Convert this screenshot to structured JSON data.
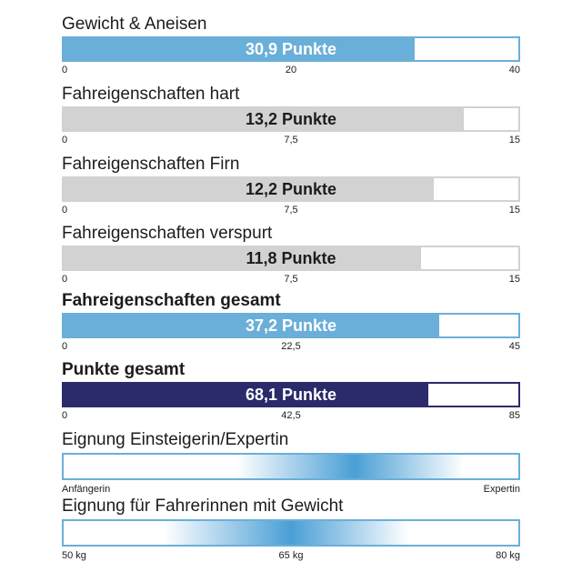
{
  "colors": {
    "blue": "#6aafd9",
    "gray": "#d2d2d2",
    "navy": "#2b2a6b",
    "label_dark": "#1c1c1c",
    "label_light": "#ffffff"
  },
  "chart_data": [
    {
      "type": "bar",
      "title": "Gewicht & Aneisen",
      "value": 30.9,
      "value_label": "30,9 Punkte",
      "ylim": [
        0,
        40
      ],
      "ticks": [
        "0",
        "20",
        "40"
      ],
      "color": "blue"
    },
    {
      "type": "bar",
      "title": "Fahreigenschaften hart",
      "value": 13.2,
      "value_label": "13,2 Punkte",
      "ylim": [
        0,
        15
      ],
      "ticks": [
        "0",
        "7,5",
        "15"
      ],
      "color": "gray"
    },
    {
      "type": "bar",
      "title": "Fahreigenschaften Firn",
      "value": 12.2,
      "value_label": "12,2 Punkte",
      "ylim": [
        0,
        15
      ],
      "ticks": [
        "0",
        "7,5",
        "15"
      ],
      "color": "gray"
    },
    {
      "type": "bar",
      "title": "Fahreigenschaften verspurt",
      "value": 11.8,
      "value_label": "11,8 Punkte",
      "ylim": [
        0,
        15
      ],
      "ticks": [
        "0",
        "7,5",
        "15"
      ],
      "color": "gray"
    },
    {
      "type": "bar",
      "title": "Fahreigenschaften gesamt",
      "value": 37.2,
      "value_label": "37,2 Punkte",
      "ylim": [
        0,
        45
      ],
      "ticks": [
        "0",
        "22,5",
        "45"
      ],
      "color": "blue"
    },
    {
      "type": "bar",
      "title": "Punkte gesamt",
      "value": 68.1,
      "value_label": "68,1 Punkte",
      "ylim": [
        0,
        85
      ],
      "ticks": [
        "0",
        "42,5",
        "85"
      ],
      "color": "navy"
    }
  ],
  "scales": [
    {
      "title": "Eignung Einsteigerin/Expertin",
      "labels": [
        "Anfängerin",
        "Expertin"
      ]
    },
    {
      "title": "Eignung für Fahrerinnen mit Gewicht",
      "labels": [
        "50 kg",
        "65 kg",
        "80 kg"
      ]
    }
  ]
}
